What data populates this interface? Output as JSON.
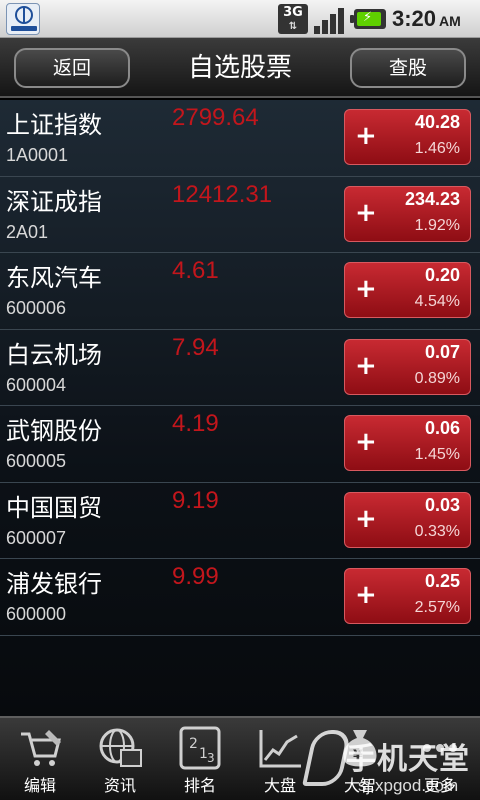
{
  "statusbar": {
    "network": "3G",
    "time": "3:20",
    "ampm": "AM"
  },
  "header": {
    "back_label": "返回",
    "title": "自选股票",
    "search_label": "查股"
  },
  "stocks": [
    {
      "name": "上证指数",
      "code": "1A0001",
      "price": "2799.64",
      "change": "40.28",
      "percent": "1.46%"
    },
    {
      "name": "深证成指",
      "code": "2A01",
      "price": "12412.31",
      "change": "234.23",
      "percent": "1.92%"
    },
    {
      "name": "东风汽车",
      "code": "600006",
      "price": "4.61",
      "change": "0.20",
      "percent": "4.54%"
    },
    {
      "name": "白云机场",
      "code": "600004",
      "price": "7.94",
      "change": "0.07",
      "percent": "0.89%"
    },
    {
      "name": "武钢股份",
      "code": "600005",
      "price": "4.19",
      "change": "0.06",
      "percent": "1.45%"
    },
    {
      "name": "中国国贸",
      "code": "600007",
      "price": "9.19",
      "change": "0.03",
      "percent": "0.33%"
    },
    {
      "name": "浦发银行",
      "code": "600000",
      "price": "9.99",
      "change": "0.25",
      "percent": "2.57%"
    }
  ],
  "plus_sign": "+",
  "bottom_nav": [
    {
      "label": "编辑",
      "icon": "cart-icon"
    },
    {
      "label": "资讯",
      "icon": "globe-icon"
    },
    {
      "label": "排名",
      "icon": "ranking-icon"
    },
    {
      "label": "大盘",
      "icon": "market-chart-icon"
    },
    {
      "label": "大智",
      "icon": "moneybag-icon"
    },
    {
      "label": "更多",
      "icon": "more-dots-icon"
    }
  ],
  "watermark": {
    "text": "手机天堂",
    "url": "sj.xpgod.com"
  },
  "colors": {
    "price_red": "#c3161c",
    "change_box": "#b01c24"
  }
}
